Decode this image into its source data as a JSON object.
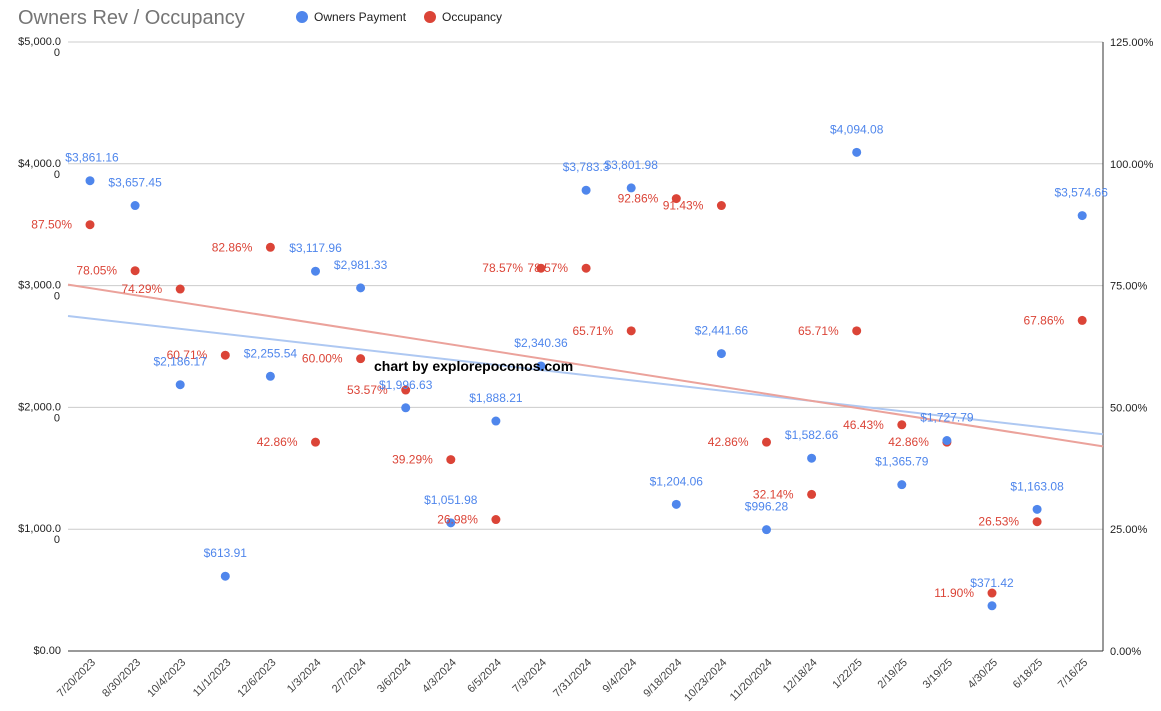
{
  "chart_data": {
    "type": "scatter",
    "title": "Owners Rev / Occupancy",
    "watermark": "chart by explorepoconos.com",
    "legend_position": "top",
    "grid": true,
    "colors": {
      "payment": "#4f86ec",
      "occupancy": "#db4437",
      "payment_trend": "#aec8f2",
      "occupancy_trend": "#eba29b"
    },
    "categories": [
      "7/20/2023",
      "8/30/2023",
      "10/4/2023",
      "11/1/2023",
      "12/6/2023",
      "1/3/2024",
      "2/7/2024",
      "3/6/2024",
      "4/3/2024",
      "6/5/2024",
      "7/3/2024",
      "7/31/2024",
      "9/4/2024",
      "9/18/2024",
      "10/23/2024",
      "11/20/2024",
      "12/18/24",
      "1/22/25",
      "2/19/25",
      "3/19/25",
      "4/30/25",
      "6/18/25",
      "7/16/25"
    ],
    "left_axis": {
      "ylim": [
        0,
        5000
      ],
      "ticks": [
        0,
        1000,
        2000,
        3000,
        4000,
        5000
      ],
      "tick_labels": [
        "$0.00",
        "$1,000.0",
        "$2,000.0",
        "$3,000.0",
        "$4,000.0",
        "$5,000.0"
      ],
      "tick_sublabels": [
        "",
        "0",
        "0",
        "0",
        "0",
        "0"
      ]
    },
    "right_axis": {
      "ylim": [
        0,
        125
      ],
      "ticks": [
        0,
        25,
        50,
        75,
        100,
        125
      ],
      "tick_labels": [
        "0.00%",
        "25.00%",
        "50.00%",
        "75.00%",
        "100.00%",
        "125.00%"
      ]
    },
    "series": [
      {
        "name": "Owners Payment",
        "axis": "left",
        "values": [
          3861.16,
          3657.45,
          2186.17,
          613.91,
          2255.54,
          3117.96,
          2981.33,
          1996.63,
          1051.98,
          1888.21,
          2340.36,
          3783.33,
          3801.98,
          1204.06,
          2441.66,
          996.28,
          1582.66,
          4094.08,
          1365.79,
          1727.79,
          371.42,
          1163.08,
          3574.66
        ],
        "labels": [
          "$3,861.16",
          "$3,657.45",
          "$2,186.17",
          "$613.91",
          "$2,255.54",
          "$3,117.96",
          "$2,981.33",
          "$1,996.63",
          "$1,051.98",
          "$1,888.21",
          "$2,340.36",
          "$3,783.3",
          "$3,801.98",
          "$1,204.06",
          "$2,441.66",
          "$996.28",
          "$1,582.66",
          "$4,094.08",
          "$1,365.79",
          "$1,727.79",
          "$371.42",
          "$1,163.08",
          "$3,574.66"
        ],
        "trendline": {
          "type": "linear",
          "start": 2750,
          "end": 1780
        }
      },
      {
        "name": "Occupancy",
        "axis": "right",
        "values": [
          87.5,
          78.05,
          74.29,
          60.71,
          82.86,
          42.86,
          60.0,
          53.57,
          39.29,
          26.98,
          78.57,
          78.57,
          65.71,
          92.86,
          91.43,
          42.86,
          32.14,
          65.71,
          46.43,
          42.86,
          11.9,
          26.53,
          67.86
        ],
        "labels": [
          "87.50%",
          "78.05%",
          "74.29%",
          "60.71%",
          "82.86%",
          "42.86%",
          "60.00%",
          "53.57%",
          "39.29%",
          "26.98%",
          "78.57%",
          "78.57%",
          "65.71%",
          "92.86%",
          "91.43%",
          "42.86%",
          "32.14%",
          "65.71%",
          "46.43%",
          "42.86%",
          "11.90%",
          "26.53%",
          "67.86%"
        ],
        "trendline": {
          "type": "linear",
          "start": 75.2,
          "end": 42.0
        }
      }
    ]
  }
}
